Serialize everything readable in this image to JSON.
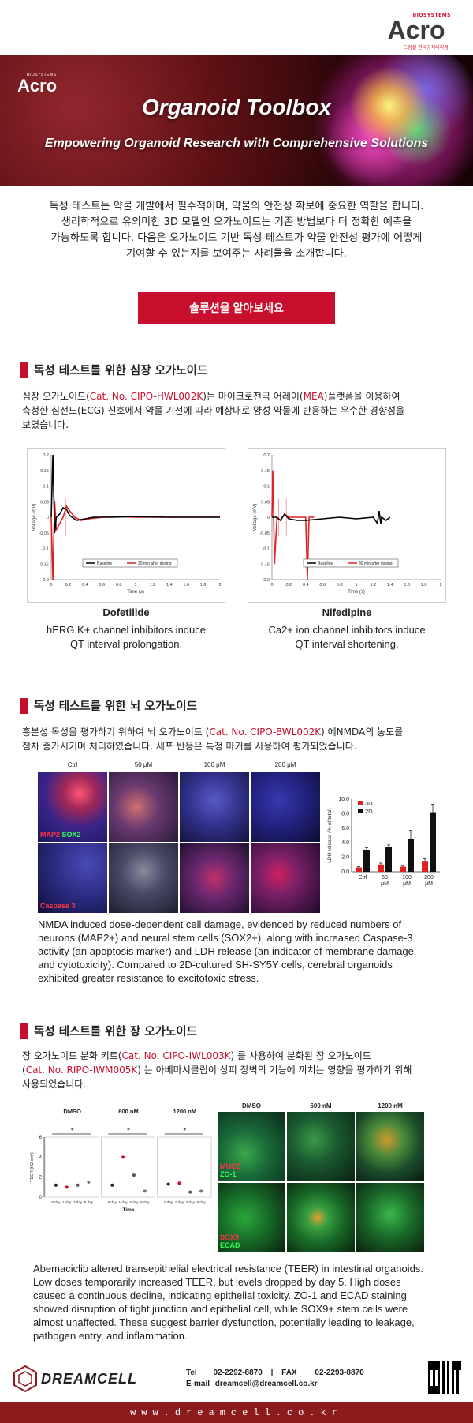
{
  "header": {
    "brand_small": "BIOSYSTEMS",
    "brand_main": "Acro",
    "brand_sub": "드림셀 한국공식대리점"
  },
  "banner": {
    "logo_small": "BIOSYSTEMS",
    "logo": "Acro",
    "title": "Organoid Toolbox",
    "subtitle": "Empowering Organoid Research with Comprehensive Solutions"
  },
  "intro": [
    "독성 테스트는 약물 개발에서 필수적이며, 약물의 안전성 확보에 중요한 역할을 합니다.",
    "생리학적으로 유의미한 3D 모델인 오가노이드는 기존 방법보다 더 정확한 예측을",
    "가능하도록 합니다. 다음은 오가노이드 기반 독성 테스트가 약물 안전성 평가에 어떻게",
    "기여할 수 있는지를 보여주는 사례들을 소개합니다."
  ],
  "cta_label": "솔루션을 알아보세요",
  "cardiac": {
    "heading": "독성 테스트를 위한 심장 오가노이드",
    "p1a": "심장 오가노이드(",
    "cat1": "Cat. No. CIPO-HWL002K",
    "p1b": ")는 마이크로전극 어레이(",
    "mea": "MEA",
    "p1c": ")플랫폼을 이용하여",
    "p2": "측정한 심전도(ECG) 신호에서 약물 기전에 따라 예상대로 양성 약물에 반응하는 우수한 경향성을",
    "p3": "보였습니다.",
    "left_name": "Dofetilide",
    "left_desc1": "hERG K+ channel inhibitors induce",
    "left_desc2": "QT interval prolongation.",
    "right_name": "Nifedipine",
    "right_desc1": "Ca2+ ion channel inhibitors induce",
    "right_desc2": "QT interval shortening."
  },
  "chart_data": [
    {
      "type": "line",
      "title": "",
      "xlabel": "Time (s)",
      "ylabel": "Voltage (mV)",
      "xlim": [
        0,
        2
      ],
      "ylim": [
        -0.2,
        0.2
      ],
      "xticks": [
        "0",
        "0.2",
        "0.4",
        "0.6",
        "0.8",
        "1",
        "1.2",
        "1.4",
        "1.6",
        "1.8",
        "2"
      ],
      "yticks": [
        "0.2",
        "0.15",
        "0.1",
        "0.05",
        "0",
        "-0.05",
        "-0.1",
        "-0.15",
        "-0.2"
      ],
      "legend": "bottom",
      "series": [
        {
          "name": "Baseline",
          "color": "#000000",
          "x": [
            0,
            0.02,
            0.04,
            0.06,
            0.1,
            0.14,
            0.18,
            0.22,
            0.3,
            0.4,
            0.5,
            0.7,
            1.0,
            1.4,
            1.8,
            2.0
          ],
          "y": [
            0,
            0.2,
            -0.05,
            0.0,
            0.01,
            0.03,
            0.025,
            0.005,
            -0.01,
            -0.005,
            0.0,
            0.0,
            0.002,
            0.0,
            0.0,
            0.0
          ]
        },
        {
          "name": "30 min after dosing",
          "color": "#e02020",
          "x": [
            0,
            0.02,
            0.04,
            0.06,
            0.1,
            0.14,
            0.18,
            0.22,
            0.28,
            0.35,
            0.45,
            0.6,
            0.8,
            1.0,
            1.4,
            1.8,
            2.0
          ],
          "y": [
            0,
            -0.2,
            0.05,
            -0.04,
            -0.02,
            0.0,
            0.035,
            0.02,
            0.0,
            -0.01,
            -0.005,
            0.0,
            0.002,
            0.0,
            0.0,
            0.0,
            0.0
          ]
        }
      ]
    },
    {
      "type": "line",
      "title": "",
      "xlabel": "Time (s)",
      "ylabel": "Voltage (mV)",
      "xlim": [
        0,
        2
      ],
      "ylim": [
        -0.2,
        0.2
      ],
      "xticks": [
        "0",
        "0.2",
        "0.4",
        "0.6",
        "0.8",
        "1",
        "1.2",
        "1.4",
        "1.6",
        "1.8",
        "2"
      ],
      "yticks": [
        "0.2",
        "0.15",
        "0.1",
        "0.05",
        "0",
        "-0.05",
        "-0.1",
        "-0.15",
        "-0.2"
      ],
      "legend": "bottom",
      "series": [
        {
          "name": "Baseline",
          "color": "#000000",
          "x": [
            0,
            0.05,
            0.1,
            0.15,
            0.2,
            0.3,
            0.4,
            0.6,
            0.8,
            1.0,
            1.2,
            1.25,
            1.27,
            1.29,
            1.3,
            1.35,
            1.4
          ],
          "y": [
            0,
            0.0,
            -0.01,
            0.01,
            -0.005,
            -0.01,
            -0.01,
            -0.005,
            0.0,
            -0.005,
            0.0,
            -0.02,
            0.02,
            -0.02,
            0.0,
            -0.01,
            0.0
          ]
        },
        {
          "name": "30 min after dosing",
          "color": "#e02020",
          "x": [
            0,
            0.01,
            0.03,
            0.06,
            0.1,
            0.15,
            0.2,
            0.3,
            0.4,
            0.42,
            0.44,
            0.46,
            0.5
          ],
          "y": [
            0,
            0.15,
            -0.15,
            0.0,
            -0.01,
            0.01,
            0.0,
            0.0,
            0.0,
            -0.2,
            0.0,
            0.0,
            0.0
          ]
        }
      ]
    },
    {
      "type": "bar",
      "title": "",
      "xlabel": "",
      "ylabel": "LDH release (% of total)",
      "ylim": [
        0,
        10
      ],
      "yticks": [
        "0.0",
        "2.0",
        "4.0",
        "6.0",
        "8.0",
        "10.0"
      ],
      "categories": [
        "Ctrl",
        "50 μM",
        "100 μM",
        "200 μM"
      ],
      "legend": "top-left",
      "series": [
        {
          "name": "3D",
          "color": "#e02020",
          "values": [
            0.6,
            1.0,
            0.7,
            1.5
          ],
          "errors": [
            0.1,
            0.2,
            0.15,
            0.3
          ]
        },
        {
          "name": "2D",
          "color": "#111111",
          "values": [
            3.0,
            3.4,
            4.5,
            8.2
          ],
          "errors": [
            0.3,
            0.3,
            1.2,
            1.1
          ]
        }
      ]
    },
    {
      "type": "scatter",
      "title": "",
      "xlabel": "Time",
      "ylabel": "TEER (kΩ·cm²)",
      "ylim": [
        0,
        6
      ],
      "yticks": [
        "0",
        "2",
        "4",
        "6"
      ],
      "groups": [
        "DMSO",
        "600 nM",
        "1200 nM"
      ],
      "categories": [
        "0 day",
        "1 day",
        "2 day",
        "6 day"
      ],
      "series": [
        {
          "name": "DMSO",
          "values": [
            1.2,
            1.0,
            1.2,
            1.5
          ]
        },
        {
          "name": "600 nM",
          "values": [
            1.2,
            4.0,
            2.2,
            0.6
          ]
        },
        {
          "name": "1200 nM",
          "values": [
            1.3,
            1.4,
            0.5,
            0.6
          ]
        }
      ]
    }
  ],
  "brain": {
    "heading": "독성 테스트를 위한 뇌 오가노이드",
    "p1a": "흥분성 독성을 평가하기 위하여 뇌 오가노이드 (",
    "cat": "Cat. No. CIPO-BWL002K",
    "p1b": ") 에NMDA의 농도를",
    "p2": "점차 증가시키며 처리하였습니다. 세포 반응은 특정 마커를 사용하여 평가되었습니다.",
    "cols": [
      "Ctrl",
      "50 μM",
      "100 μM",
      "200 μM"
    ],
    "label_map2": "MAP2",
    "label_sox2": "SOX2",
    "label_caspase": "Caspase 3",
    "desc": [
      "NMDA induced dose-dependent cell damage, evidenced by reduced numbers of",
      "neurons (MAP2+) and neural stem cells (SOX2+), along with increased Caspase-3",
      "activity (an apoptosis marker) and LDH release (an indicator of membrane damage",
      "and cytotoxicity). Compared to 2D-cultured SH-SY5Y cells, cerebral organoids",
      "exhibited greater resistance to excitotoxic stress."
    ]
  },
  "intestine": {
    "heading": "독성 테스트를 위한 장 오가노이드",
    "p1a": "장 오가노이드 분화 키트(",
    "cat1": "Cat. No. CIPO-IWL003K",
    "p1b": ") 를 사용하여 분화된 장 오가노이드",
    "p2a": "(",
    "cat2": "Cat. No. RIPO-IWM005K",
    "p2b": ") 는 아베마시클립이 상피 장벽의 기능에 끼치는 영향을 평가하기 위해",
    "p3": "사용되었습니다.",
    "cols": [
      "DMSO",
      "600 nM",
      "1200 nM"
    ],
    "label_muc2": "MUC2",
    "label_zo1": "ZO-1",
    "label_sox9": "SOX9",
    "label_ecad": "ECAD",
    "desc": [
      "Abemaciclib altered transepithelial electrical resistance (TEER) in intestinal organoids.",
      "Low doses temporarily increased TEER, but levels dropped by day 5. High doses",
      "caused a continuous decline, indicating epithelial toxicity. ZO-1 and ECAD staining",
      "showed disruption of tight junction and epithelial cell, while SOX9+ stem cells were",
      "almost unaffected. These suggest barrier dysfunction, potentially leading to leakage,",
      "pathogen entry, and inflammation."
    ]
  },
  "footer": {
    "company": "DREAMCELL",
    "tel_label": "Tel",
    "tel": "02-2292-8870",
    "sep": "|",
    "fax_label": "FAX",
    "fax": "02-2293-8870",
    "email_label": "E-mail",
    "email": "dreamcell@dreamcell.co.kr",
    "url": "www.dreamcell.co.kr"
  },
  "colors": {
    "accent": "#c8102e",
    "footer_bar": "#8c1b1e"
  }
}
